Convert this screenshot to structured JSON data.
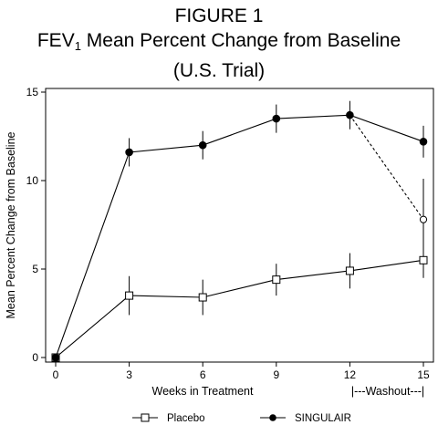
{
  "chart_data": {
    "type": "line",
    "title": "FIGURE 1",
    "subtitle_prefix": "FEV",
    "subtitle_subscript": "1",
    "subtitle_rest": " Mean Percent Change from Baseline",
    "subtitle2": "(U.S. Trial)",
    "xlabel": "Weeks in Treatment",
    "ylabel": "Mean Percent Change from Baseline",
    "washout_label": "|---Washout---|",
    "xlim": [
      0,
      15
    ],
    "ylim": [
      0,
      15
    ],
    "x_ticks": [
      0,
      3,
      6,
      9,
      12,
      15
    ],
    "y_ticks": [
      0,
      5,
      10,
      15
    ],
    "grid": false,
    "legend_position": "bottom",
    "series": [
      {
        "name": "Placebo",
        "marker": "open-square",
        "x": [
          0,
          3,
          6,
          9,
          12,
          15
        ],
        "y": [
          0,
          3.5,
          3.4,
          4.4,
          4.9,
          5.5
        ],
        "error": [
          0,
          1.1,
          1.0,
          0.9,
          1.0,
          1.0
        ]
      },
      {
        "name": "SINGULAIR",
        "marker": "filled-circle",
        "x": [
          0,
          3,
          6,
          9,
          12,
          15
        ],
        "y": [
          0,
          11.6,
          12.0,
          13.5,
          13.7,
          12.2
        ],
        "error": [
          0,
          0.8,
          0.8,
          0.8,
          0.8,
          0.9
        ]
      },
      {
        "name": "",
        "marker": "open-circle",
        "line_style": "dashed",
        "x": [
          12,
          15
        ],
        "y": [
          13.7,
          7.8
        ],
        "error": [
          0,
          2.3
        ]
      }
    ]
  }
}
